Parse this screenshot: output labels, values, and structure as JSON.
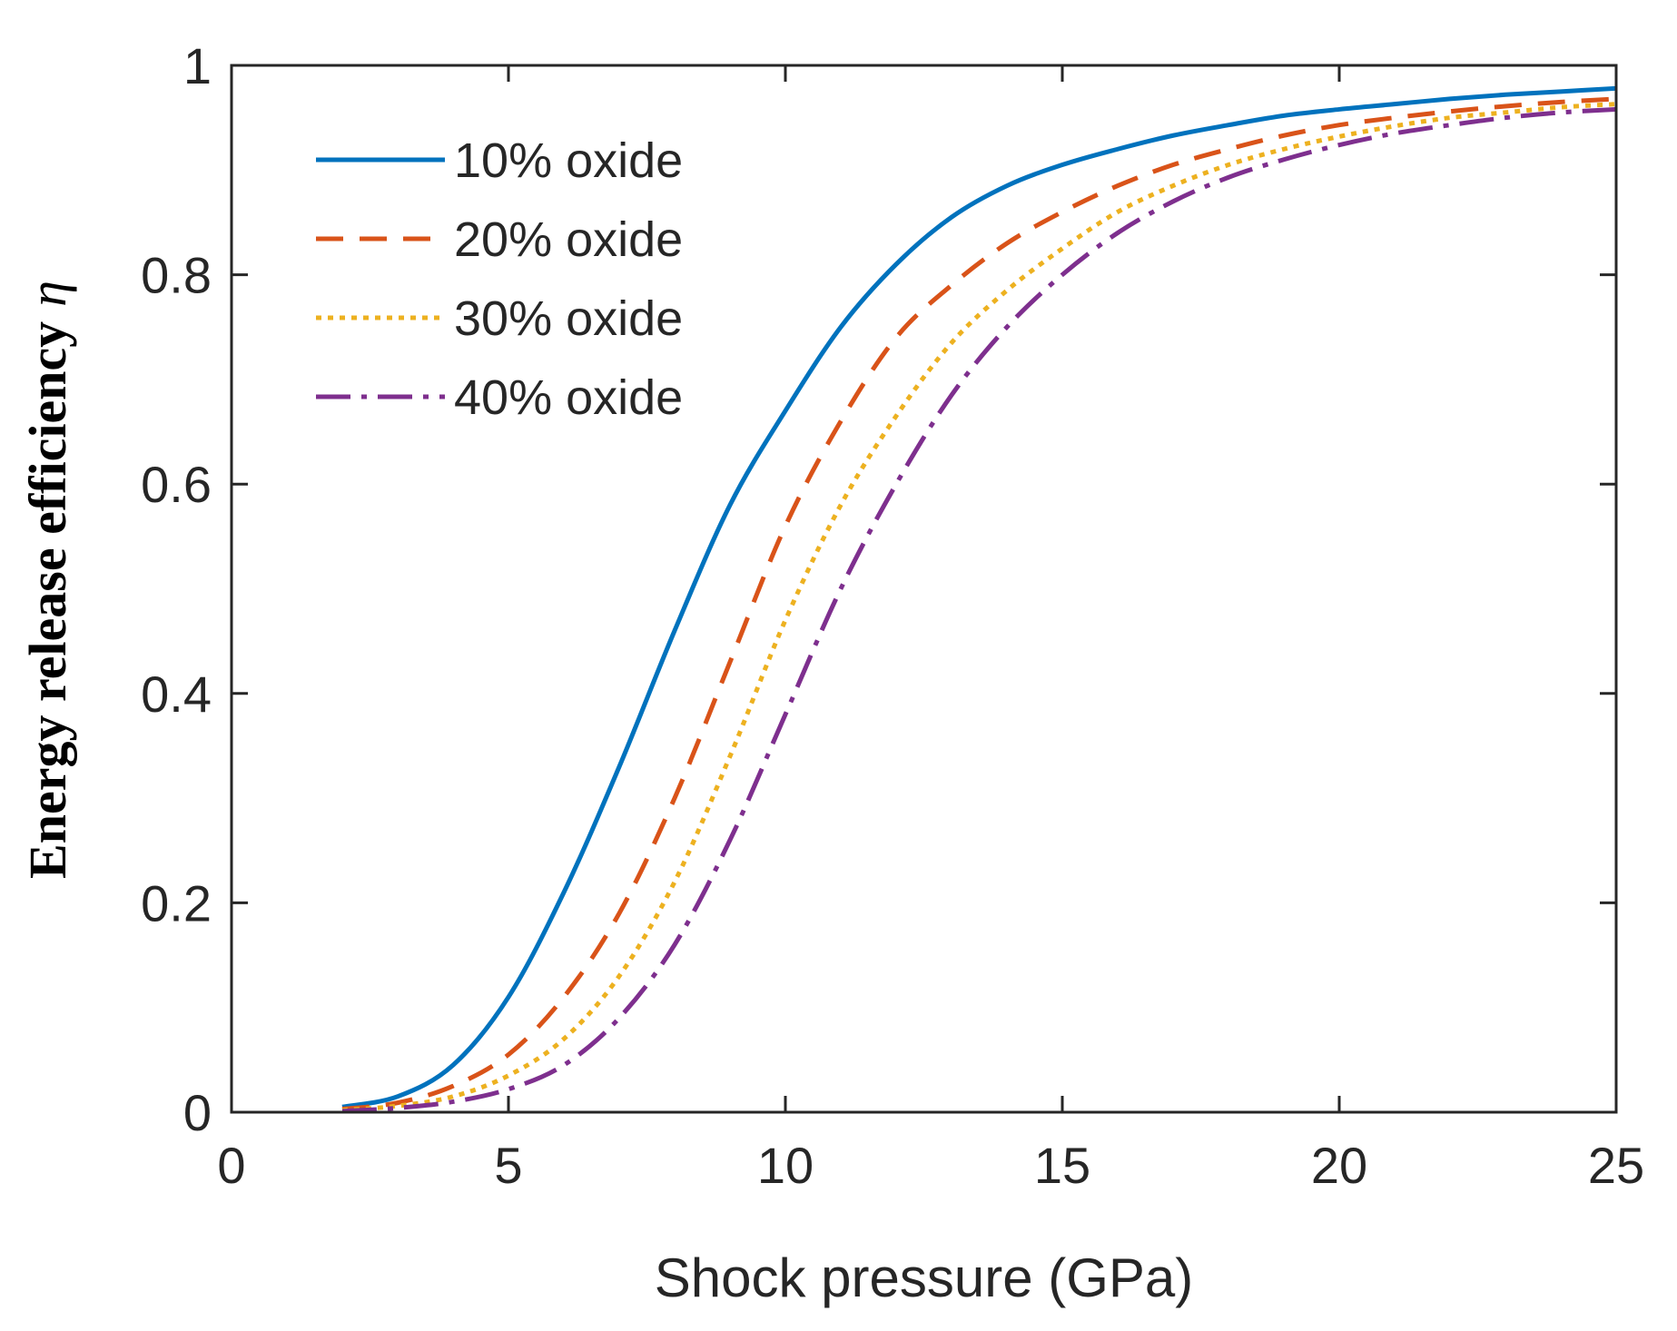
{
  "chart_data": {
    "type": "line",
    "title": "",
    "xlabel": "Shock pressure (GPa)",
    "ylabel": "Energy release efficiency",
    "ylabel_symbol": "η",
    "xlim": [
      0,
      25
    ],
    "ylim": [
      0,
      1
    ],
    "xticks": [
      0,
      5,
      10,
      15,
      20,
      25
    ],
    "yticks": [
      0,
      0.2,
      0.4,
      0.6,
      0.8,
      1
    ],
    "ytick_labels": [
      "0",
      "0.2",
      "0.4",
      "0.6",
      "0.8",
      "1"
    ],
    "grid": false,
    "legend_position": "top-left",
    "x": [
      2,
      3,
      4,
      5,
      6,
      7,
      8,
      9,
      10,
      11,
      12,
      13,
      14,
      15,
      16,
      17,
      18,
      19,
      20,
      21,
      22,
      23,
      24,
      25
    ],
    "series": [
      {
        "name": "10% oxide",
        "color": "#0072BD",
        "dash": "solid",
        "values": [
          0.005,
          0.015,
          0.045,
          0.11,
          0.21,
          0.33,
          0.46,
          0.58,
          0.67,
          0.75,
          0.81,
          0.855,
          0.885,
          0.905,
          0.92,
          0.933,
          0.943,
          0.952,
          0.958,
          0.963,
          0.968,
          0.972,
          0.975,
          0.978
        ]
      },
      {
        "name": "20% oxide",
        "color": "#D95319",
        "dash": "dashed",
        "values": [
          0.003,
          0.009,
          0.025,
          0.055,
          0.11,
          0.19,
          0.3,
          0.43,
          0.56,
          0.66,
          0.74,
          0.79,
          0.83,
          0.86,
          0.885,
          0.905,
          0.92,
          0.933,
          0.943,
          0.95,
          0.956,
          0.961,
          0.965,
          0.968
        ]
      },
      {
        "name": "30% oxide",
        "color": "#EDB120",
        "dash": "dotted",
        "values": [
          0.002,
          0.006,
          0.015,
          0.035,
          0.07,
          0.13,
          0.22,
          0.34,
          0.47,
          0.58,
          0.665,
          0.735,
          0.785,
          0.825,
          0.86,
          0.885,
          0.905,
          0.92,
          0.932,
          0.942,
          0.95,
          0.955,
          0.96,
          0.963
        ]
      },
      {
        "name": "40% oxide",
        "color": "#7E2F8E",
        "dash": "dashdot",
        "values": [
          0.001,
          0.004,
          0.01,
          0.022,
          0.045,
          0.09,
          0.16,
          0.26,
          0.38,
          0.5,
          0.6,
          0.685,
          0.75,
          0.8,
          0.84,
          0.87,
          0.893,
          0.91,
          0.924,
          0.935,
          0.943,
          0.95,
          0.955,
          0.958
        ]
      }
    ]
  }
}
